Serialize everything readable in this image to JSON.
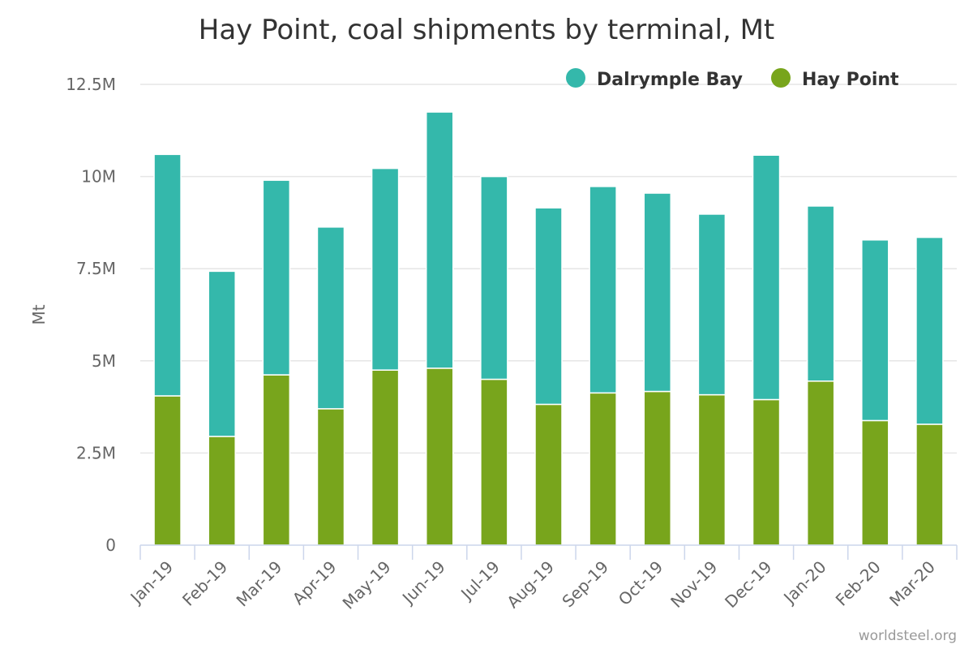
{
  "chart_data": {
    "type": "bar",
    "stacked": true,
    "title": "Hay Point, coal shipments by terminal, Mt",
    "xlabel": "",
    "ylabel": "Mt",
    "ylim": [
      0,
      12.5
    ],
    "yticks": [
      {
        "value": 0,
        "label": "0"
      },
      {
        "value": 2.5,
        "label": "2.5M"
      },
      {
        "value": 5,
        "label": "5M"
      },
      {
        "value": 7.5,
        "label": "7.5M"
      },
      {
        "value": 10,
        "label": "10M"
      },
      {
        "value": 12.5,
        "label": "12.5M"
      }
    ],
    "categories": [
      "Jan-19",
      "Feb-19",
      "Mar-19",
      "Apr-19",
      "May-19",
      "Jun-19",
      "Jul-19",
      "Aug-19",
      "Sep-19",
      "Oct-19",
      "Nov-19",
      "Dec-19",
      "Jan-20",
      "Feb-20",
      "Mar-20"
    ],
    "series": [
      {
        "name": "Hay Point",
        "color": "#78a51c",
        "values": [
          4.05,
          2.95,
          4.62,
          3.7,
          4.75,
          4.8,
          4.5,
          3.82,
          4.13,
          4.17,
          4.08,
          3.95,
          4.45,
          3.38,
          3.28
        ]
      },
      {
        "name": "Dalrymple Bay",
        "color": "#34b8ab",
        "values": [
          6.55,
          4.48,
          5.28,
          4.93,
          5.47,
          6.95,
          5.5,
          5.33,
          5.6,
          5.38,
          4.9,
          6.63,
          4.75,
          4.9,
          5.07
        ]
      }
    ],
    "legend": {
      "position": "top-right",
      "order": [
        "Dalrymple Bay",
        "Hay Point"
      ]
    },
    "grid": true
  },
  "credit": "worldsteel.org",
  "colors": {
    "grid": "#e6e6e6",
    "axis": "#ccd6eb",
    "text": "#333333",
    "tick": "#666666"
  }
}
